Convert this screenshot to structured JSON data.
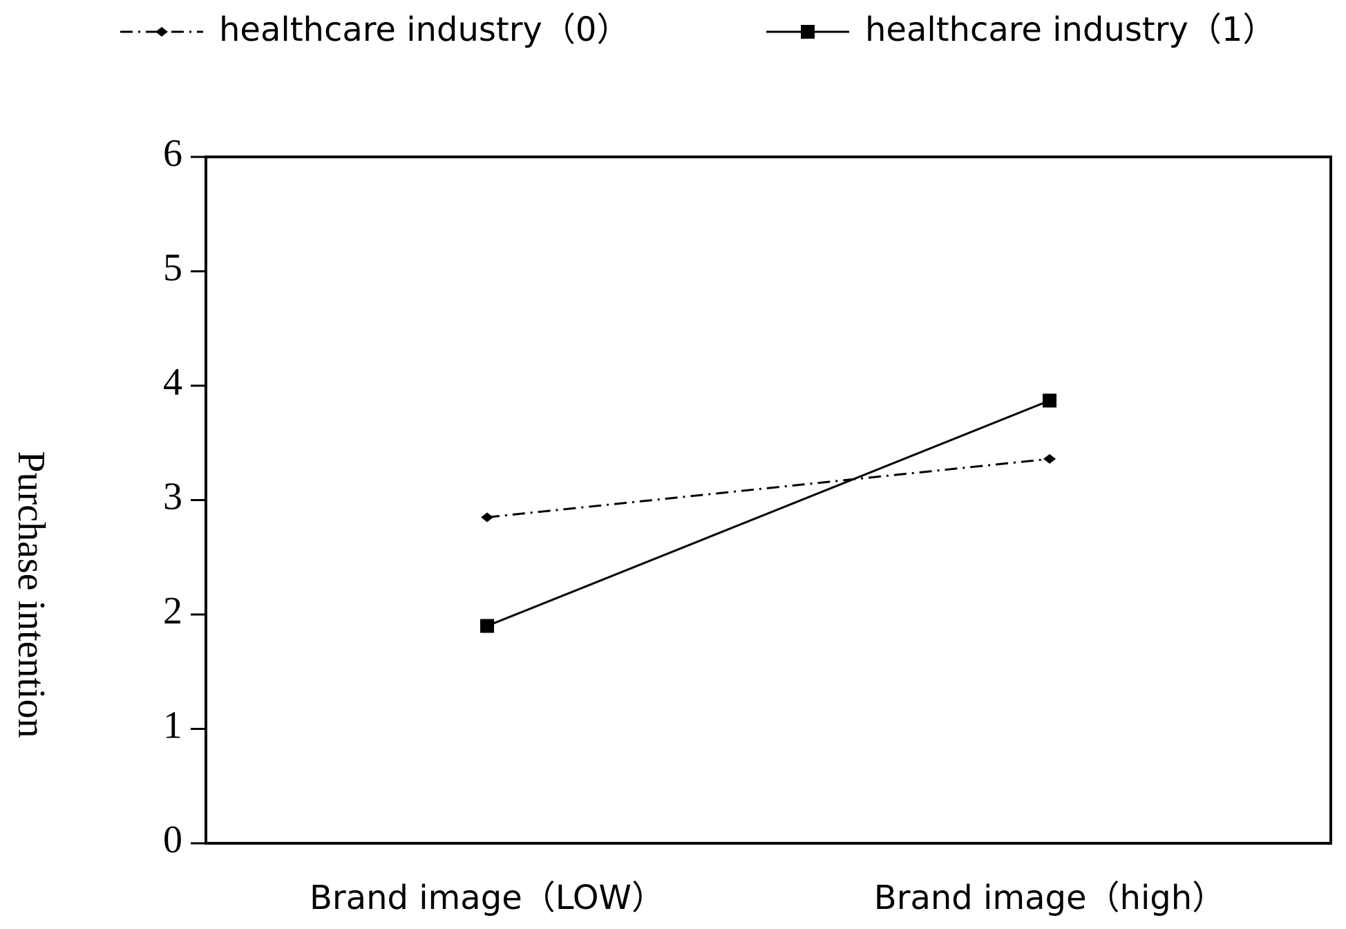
{
  "chart_data": {
    "type": "line",
    "categories": [
      "Brand image（LOW）",
      "Brand image（high）"
    ],
    "y_label": "Purchase intention",
    "series": [
      {
        "name": "healthcare industry（0）",
        "color": "#000000",
        "dash": "dashdot",
        "marker": "diamond",
        "values": [
          2.85,
          3.36
        ]
      },
      {
        "name": "healthcare industry（1）",
        "color": "#000000",
        "dash": "solid",
        "marker": "square",
        "values": [
          1.9,
          3.87
        ]
      }
    ],
    "ylim": [
      0,
      6
    ],
    "yticks": [
      0,
      1,
      2,
      3,
      4,
      5,
      6
    ],
    "grid": false,
    "legend": "top"
  }
}
